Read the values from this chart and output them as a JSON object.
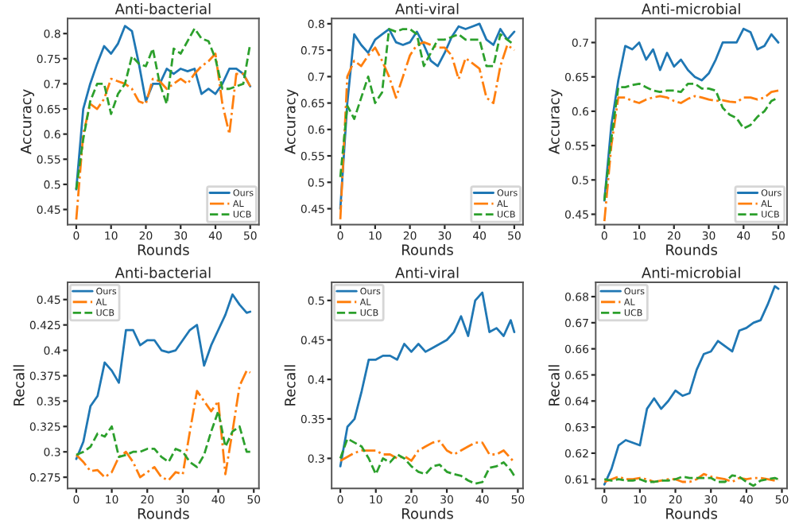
{
  "chart_data": [
    {
      "type": "line",
      "title": "Anti-bacterial",
      "xlabel": "Rounds",
      "ylabel": "Accuracy",
      "x": [
        0,
        2,
        4,
        6,
        8,
        10,
        12,
        14,
        16,
        18,
        20,
        22,
        24,
        26,
        28,
        30,
        32,
        34,
        36,
        38,
        40,
        42,
        44,
        46,
        48,
        50
      ],
      "xlim": [
        -2.5,
        52.5
      ],
      "xticks": [
        0,
        10,
        20,
        30,
        40,
        50
      ],
      "ylim": [
        0.42,
        0.83
      ],
      "yticks": [
        0.45,
        0.5,
        0.55,
        0.6,
        0.65,
        0.7,
        0.75,
        0.8
      ],
      "legend": "bottom right",
      "series": [
        {
          "name": "Ours",
          "color": "#1f77b4",
          "line_style": "solid",
          "values": [
            0.49,
            0.65,
            0.7,
            0.74,
            0.775,
            0.76,
            0.78,
            0.815,
            0.805,
            0.74,
            0.665,
            0.7,
            0.7,
            0.73,
            0.72,
            0.73,
            0.725,
            0.73,
            0.68,
            0.69,
            0.68,
            0.7,
            0.73,
            0.73,
            0.72,
            0.695
          ]
        },
        {
          "name": "AL",
          "color": "#ff7f0e",
          "line_style": "dashdot",
          "values": [
            0.43,
            0.6,
            0.66,
            0.65,
            0.67,
            0.71,
            0.705,
            0.7,
            0.69,
            0.665,
            0.66,
            0.71,
            0.705,
            0.69,
            0.7,
            0.71,
            0.7,
            0.72,
            0.735,
            0.745,
            0.76,
            0.66,
            0.6,
            0.72,
            0.72,
            0.695
          ]
        },
        {
          "name": "UCB",
          "color": "#2ca02c",
          "line_style": "dashed",
          "values": [
            0.49,
            0.59,
            0.665,
            0.7,
            0.7,
            0.64,
            0.68,
            0.7,
            0.755,
            0.74,
            0.735,
            0.77,
            0.7,
            0.66,
            0.77,
            0.76,
            0.785,
            0.81,
            0.79,
            0.785,
            0.75,
            0.69,
            0.69,
            0.695,
            0.7,
            0.78
          ]
        }
      ]
    },
    {
      "type": "line",
      "title": "Anti-viral",
      "xlabel": "Rounds",
      "ylabel": "Accuracy",
      "x": [
        0,
        2,
        4,
        6,
        8,
        10,
        12,
        14,
        16,
        18,
        20,
        22,
        24,
        26,
        28,
        30,
        32,
        34,
        36,
        38,
        40,
        42,
        44,
        46,
        48,
        50
      ],
      "xlim": [
        -2.5,
        52.5
      ],
      "xticks": [
        0,
        10,
        20,
        30,
        40,
        50
      ],
      "ylim": [
        0.42,
        0.81
      ],
      "yticks": [
        0.45,
        0.5,
        0.55,
        0.6,
        0.65,
        0.7,
        0.75,
        0.8
      ],
      "legend": "bottom right",
      "series": [
        {
          "name": "Ours",
          "color": "#1f77b4",
          "line_style": "solid",
          "values": [
            0.45,
            0.65,
            0.78,
            0.76,
            0.745,
            0.77,
            0.78,
            0.79,
            0.765,
            0.76,
            0.765,
            0.785,
            0.76,
            0.73,
            0.72,
            0.745,
            0.775,
            0.795,
            0.79,
            0.795,
            0.8,
            0.77,
            0.76,
            0.79,
            0.77,
            0.785
          ]
        },
        {
          "name": "AL",
          "color": "#ff7f0e",
          "line_style": "dashdot",
          "values": [
            0.43,
            0.7,
            0.73,
            0.72,
            0.74,
            0.755,
            0.73,
            0.7,
            0.66,
            0.7,
            0.74,
            0.76,
            0.765,
            0.76,
            0.755,
            0.755,
            0.74,
            0.695,
            0.735,
            0.725,
            0.715,
            0.66,
            0.65,
            0.72,
            0.76,
            0.75
          ]
        },
        {
          "name": "UCB",
          "color": "#2ca02c",
          "line_style": "dashed",
          "values": [
            0.51,
            0.645,
            0.62,
            0.66,
            0.7,
            0.65,
            0.67,
            0.79,
            0.785,
            0.79,
            0.79,
            0.78,
            0.72,
            0.745,
            0.77,
            0.77,
            0.775,
            0.78,
            0.77,
            0.77,
            0.77,
            0.72,
            0.72,
            0.78,
            0.77,
            0.76
          ]
        }
      ]
    },
    {
      "type": "line",
      "title": "Anti-microbial",
      "xlabel": "Rounds",
      "ylabel": "Accuracy",
      "x": [
        0,
        2,
        4,
        6,
        8,
        10,
        12,
        14,
        16,
        18,
        20,
        22,
        24,
        26,
        28,
        30,
        32,
        34,
        36,
        38,
        40,
        42,
        44,
        46,
        48,
        50
      ],
      "xlim": [
        -2.5,
        52.5
      ],
      "xticks": [
        0,
        10,
        20,
        30,
        40,
        50
      ],
      "ylim": [
        0.435,
        0.735
      ],
      "yticks": [
        0.45,
        0.5,
        0.55,
        0.6,
        0.65,
        0.7
      ],
      "legend": "bottom right",
      "series": [
        {
          "name": "Ours",
          "color": "#1f77b4",
          "line_style": "solid",
          "values": [
            0.47,
            0.58,
            0.645,
            0.695,
            0.69,
            0.7,
            0.675,
            0.69,
            0.66,
            0.685,
            0.665,
            0.675,
            0.66,
            0.65,
            0.645,
            0.655,
            0.675,
            0.7,
            0.7,
            0.7,
            0.72,
            0.715,
            0.69,
            0.695,
            0.712,
            0.7
          ]
        },
        {
          "name": "AL",
          "color": "#ff7f0e",
          "line_style": "dashdot",
          "values": [
            0.44,
            0.55,
            0.62,
            0.62,
            0.615,
            0.612,
            0.617,
            0.62,
            0.622,
            0.62,
            0.615,
            0.612,
            0.618,
            0.622,
            0.62,
            0.617,
            0.615,
            0.616,
            0.614,
            0.613,
            0.62,
            0.62,
            0.617,
            0.62,
            0.628,
            0.63
          ]
        },
        {
          "name": "UCB",
          "color": "#2ca02c",
          "line_style": "dashed",
          "values": [
            0.47,
            0.56,
            0.635,
            0.635,
            0.638,
            0.64,
            0.635,
            0.63,
            0.628,
            0.63,
            0.63,
            0.628,
            0.64,
            0.64,
            0.633,
            0.633,
            0.63,
            0.605,
            0.595,
            0.59,
            0.575,
            0.58,
            0.592,
            0.6,
            0.615,
            0.62
          ]
        }
      ]
    },
    {
      "type": "line",
      "title": "Anti-bacterial",
      "xlabel": "Rounds",
      "ylabel": "Recall",
      "x": [
        0,
        2,
        4,
        6,
        8,
        10,
        12,
        14,
        16,
        18,
        20,
        22,
        24,
        26,
        28,
        30,
        32,
        34,
        36,
        38,
        40,
        42,
        44,
        46,
        48,
        49
      ],
      "xlim": [
        -2.45,
        51.45
      ],
      "xticks": [
        0,
        10,
        20,
        30,
        40,
        50
      ],
      "ylim": [
        0.264,
        0.467
      ],
      "yticks": [
        0.275,
        0.3,
        0.325,
        0.35,
        0.375,
        0.4,
        0.425,
        0.45
      ],
      "legend": "top left",
      "series": [
        {
          "name": "Ours",
          "color": "#1f77b4",
          "line_style": "solid",
          "values": [
            0.293,
            0.31,
            0.345,
            0.355,
            0.388,
            0.38,
            0.368,
            0.42,
            0.42,
            0.405,
            0.41,
            0.41,
            0.4,
            0.398,
            0.4,
            0.41,
            0.42,
            0.425,
            0.385,
            0.405,
            0.42,
            0.435,
            0.455,
            0.445,
            0.437,
            0.438
          ]
        },
        {
          "name": "AL",
          "color": "#ff7f0e",
          "line_style": "dashdot",
          "values": [
            0.297,
            0.29,
            0.281,
            0.282,
            0.275,
            0.28,
            0.295,
            0.3,
            0.29,
            0.275,
            0.28,
            0.285,
            0.275,
            0.272,
            0.28,
            0.278,
            0.32,
            0.36,
            0.35,
            0.34,
            0.35,
            0.278,
            0.32,
            0.365,
            0.38,
            0.378
          ]
        },
        {
          "name": "UCB",
          "color": "#2ca02c",
          "line_style": "dashed",
          "values": [
            0.297,
            0.3,
            0.305,
            0.318,
            0.315,
            0.325,
            0.295,
            0.297,
            0.3,
            0.3,
            0.303,
            0.303,
            0.295,
            0.29,
            0.303,
            0.3,
            0.29,
            0.285,
            0.297,
            0.32,
            0.34,
            0.305,
            0.32,
            0.325,
            0.3,
            0.3
          ]
        }
      ]
    },
    {
      "type": "line",
      "title": "Anti-viral",
      "xlabel": "Rounds",
      "ylabel": "Recall",
      "x": [
        0,
        2,
        4,
        6,
        8,
        10,
        12,
        14,
        16,
        18,
        20,
        22,
        24,
        26,
        28,
        30,
        32,
        34,
        36,
        38,
        40,
        42,
        44,
        46,
        48,
        49
      ],
      "xlim": [
        -2.45,
        51.45
      ],
      "xticks": [
        0,
        10,
        20,
        30,
        40,
        50
      ],
      "ylim": [
        0.262,
        0.523
      ],
      "yticks": [
        0.3,
        0.35,
        0.4,
        0.45,
        0.5
      ],
      "legend": "top left",
      "series": [
        {
          "name": "Ours",
          "color": "#1f77b4",
          "line_style": "solid",
          "values": [
            0.29,
            0.34,
            0.35,
            0.385,
            0.425,
            0.425,
            0.43,
            0.43,
            0.425,
            0.445,
            0.435,
            0.445,
            0.435,
            0.44,
            0.445,
            0.45,
            0.46,
            0.48,
            0.455,
            0.5,
            0.51,
            0.46,
            0.465,
            0.455,
            0.475,
            0.46
          ]
        },
        {
          "name": "AL",
          "color": "#ff7f0e",
          "line_style": "dashdot",
          "values": [
            0.297,
            0.302,
            0.307,
            0.31,
            0.31,
            0.31,
            0.305,
            0.305,
            0.3,
            0.303,
            0.297,
            0.31,
            0.315,
            0.32,
            0.322,
            0.31,
            0.305,
            0.31,
            0.315,
            0.32,
            0.32,
            0.305,
            0.305,
            0.31,
            0.3,
            0.295
          ]
        },
        {
          "name": "UCB",
          "color": "#2ca02c",
          "line_style": "dashed",
          "values": [
            0.3,
            0.325,
            0.32,
            0.315,
            0.3,
            0.28,
            0.3,
            0.295,
            0.305,
            0.3,
            0.29,
            0.283,
            0.28,
            0.29,
            0.292,
            0.283,
            0.28,
            0.278,
            0.272,
            0.268,
            0.27,
            0.288,
            0.29,
            0.295,
            0.285,
            0.278
          ]
        }
      ]
    },
    {
      "type": "line",
      "title": "Anti-microbial",
      "xlabel": "Rounds",
      "ylabel": "Recall",
      "x": [
        0,
        2,
        4,
        6,
        8,
        10,
        12,
        14,
        16,
        18,
        20,
        22,
        24,
        26,
        28,
        30,
        32,
        34,
        36,
        38,
        40,
        42,
        44,
        46,
        48,
        49
      ],
      "xlim": [
        -2.45,
        51.45
      ],
      "xticks": [
        0,
        10,
        20,
        30,
        40,
        50
      ],
      "ylim": [
        0.6065,
        0.6855
      ],
      "yticks": [
        0.61,
        0.62,
        0.63,
        0.64,
        0.65,
        0.66,
        0.67,
        0.68
      ],
      "legend": "top left",
      "series": [
        {
          "name": "Ours",
          "color": "#1f77b4",
          "line_style": "solid",
          "values": [
            0.608,
            0.614,
            0.623,
            0.625,
            0.624,
            0.623,
            0.637,
            0.641,
            0.637,
            0.64,
            0.644,
            0.642,
            0.643,
            0.652,
            0.658,
            0.659,
            0.663,
            0.661,
            0.659,
            0.667,
            0.668,
            0.67,
            0.671,
            0.677,
            0.684,
            0.683
          ]
        },
        {
          "name": "AL",
          "color": "#ff7f0e",
          "line_style": "dashdot",
          "values": [
            0.609,
            0.61,
            0.611,
            0.61,
            0.61,
            0.6105,
            0.61,
            0.609,
            0.6095,
            0.61,
            0.61,
            0.609,
            0.609,
            0.61,
            0.612,
            0.611,
            0.6105,
            0.61,
            0.609,
            0.6105,
            0.61,
            0.6105,
            0.6105,
            0.61,
            0.6095,
            0.61
          ]
        },
        {
          "name": "UCB",
          "color": "#2ca02c",
          "line_style": "dashed",
          "values": [
            0.61,
            0.6095,
            0.61,
            0.6095,
            0.6095,
            0.61,
            0.609,
            0.609,
            0.6095,
            0.6095,
            0.61,
            0.611,
            0.6105,
            0.6105,
            0.6105,
            0.6105,
            0.609,
            0.609,
            0.6115,
            0.611,
            0.609,
            0.6075,
            0.6095,
            0.61,
            0.6105,
            0.61
          ]
        }
      ]
    }
  ]
}
